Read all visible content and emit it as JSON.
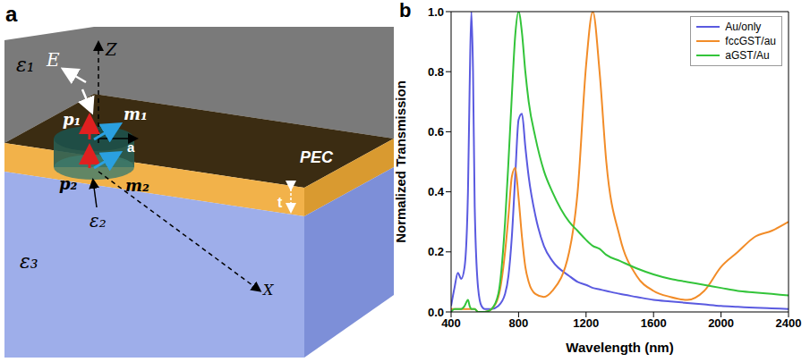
{
  "panel_labels": [
    "a",
    "b"
  ],
  "diagram": {
    "labels": {
      "eps1": "ε₁",
      "E": "E",
      "Z": "Z",
      "p1": "p₁",
      "m1": "m₁",
      "radius": "a",
      "pec": "PEC",
      "p2": "p₂",
      "m2": "m₂",
      "thickness": "t",
      "eps3": "ε₃",
      "eps2": "ε₂",
      "X": "X"
    }
  },
  "chart_data": {
    "type": "line",
    "x_label": "Wavelength (nm)",
    "y_label": "Normalized Transmission",
    "x": [
      400,
      420,
      440,
      460,
      480,
      500,
      510,
      520,
      530,
      540,
      560,
      580,
      600,
      640,
      680,
      720,
      740,
      760,
      780,
      800,
      820,
      840,
      860,
      900,
      950,
      1000,
      1100,
      1150,
      1200,
      1240,
      1280,
      1320,
      1400,
      1500,
      1600,
      1700,
      1800,
      1900,
      2000,
      2100,
      2200,
      2300,
      2400
    ],
    "series": [
      {
        "name": "Au/only",
        "color": "#5a5ae0",
        "values": [
          0.02,
          0.08,
          0.13,
          0.11,
          0.15,
          0.4,
          0.75,
          1.0,
          0.8,
          0.35,
          0.08,
          0.02,
          0.01,
          0.01,
          0.02,
          0.06,
          0.12,
          0.25,
          0.45,
          0.64,
          0.66,
          0.55,
          0.45,
          0.32,
          0.22,
          0.17,
          0.12,
          0.1,
          0.09,
          0.08,
          0.075,
          0.07,
          0.06,
          0.05,
          0.04,
          0.035,
          0.03,
          0.025,
          0.02,
          0.017,
          0.014,
          0.012,
          0.01
        ]
      },
      {
        "name": "fccGST/au",
        "color": "#f28c28",
        "values": [
          0.01,
          0.01,
          0.01,
          0.01,
          0.01,
          0.01,
          0.01,
          0.01,
          0.01,
          0.01,
          0.0,
          0.0,
          0.0,
          0.01,
          0.05,
          0.2,
          0.32,
          0.45,
          0.48,
          0.38,
          0.25,
          0.15,
          0.1,
          0.06,
          0.05,
          0.07,
          0.2,
          0.4,
          0.82,
          1.0,
          0.8,
          0.5,
          0.25,
          0.12,
          0.07,
          0.05,
          0.04,
          0.07,
          0.15,
          0.2,
          0.25,
          0.27,
          0.3
        ]
      },
      {
        "name": "aGST/Au",
        "color": "#33c43a",
        "values": [
          0.0,
          0.01,
          0.01,
          0.01,
          0.02,
          0.04,
          0.02,
          0.01,
          0.01,
          0.01,
          0.0,
          0.0,
          0.0,
          0.01,
          0.06,
          0.3,
          0.5,
          0.72,
          0.92,
          1.0,
          0.93,
          0.8,
          0.7,
          0.58,
          0.47,
          0.4,
          0.3,
          0.27,
          0.24,
          0.22,
          0.21,
          0.19,
          0.17,
          0.145,
          0.125,
          0.11,
          0.1,
          0.09,
          0.08,
          0.07,
          0.065,
          0.06,
          0.055
        ]
      }
    ],
    "xlim": [
      400,
      2400
    ],
    "xticks": [
      400,
      800,
      1200,
      1600,
      2000,
      2400
    ],
    "ylim": [
      0,
      1
    ],
    "yticks": [
      {
        "value": 0,
        "label": "0.0"
      },
      0.2,
      0.4,
      0.6,
      0.8,
      {
        "value": 1,
        "label": "1.0"
      }
    ],
    "legend": "upper right",
    "grid": false
  }
}
